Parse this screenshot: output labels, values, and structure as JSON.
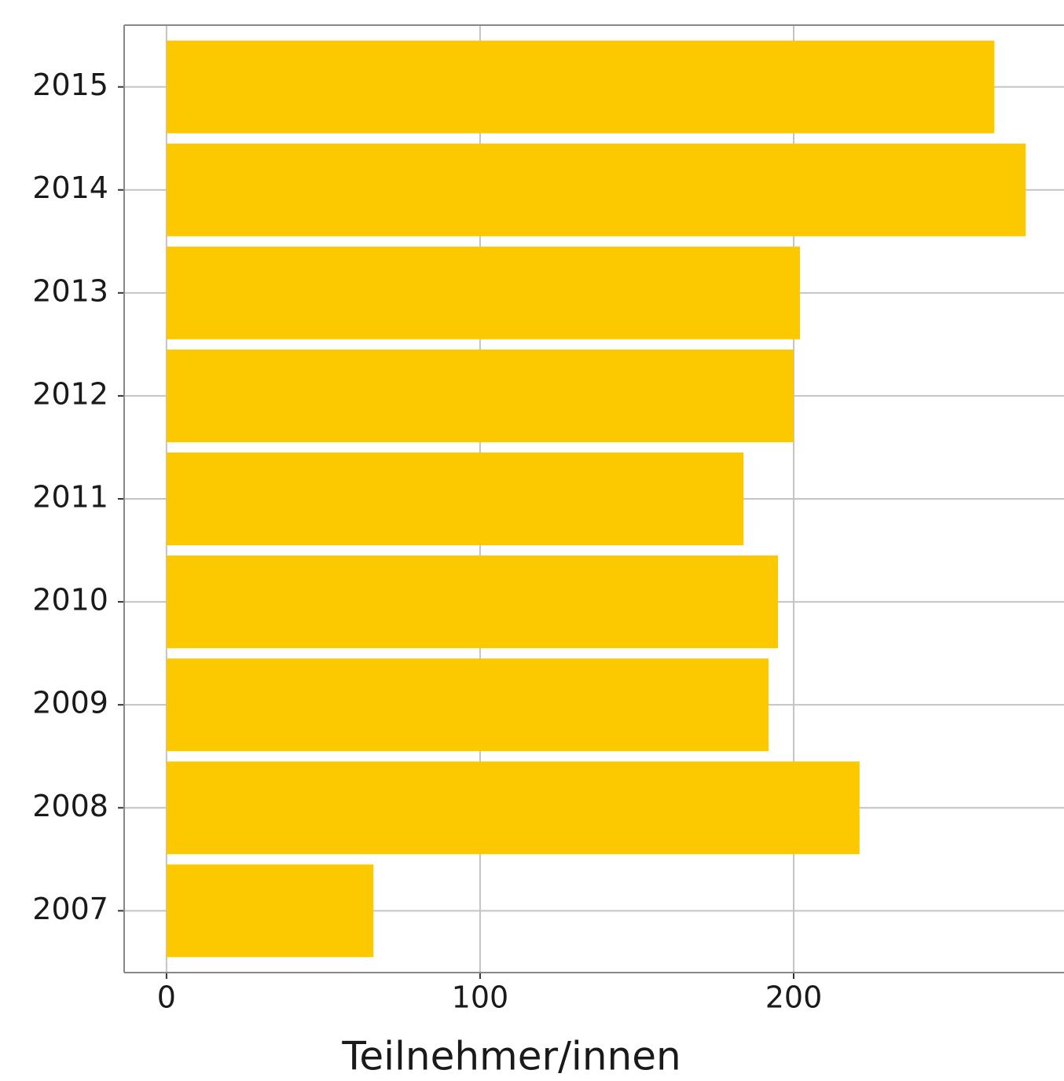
{
  "chart_data": {
    "type": "barh",
    "xlabel": "Teilnehmer/innen",
    "categories": [
      "2007",
      "2008",
      "2009",
      "2010",
      "2011",
      "2012",
      "2013",
      "2014",
      "2015"
    ],
    "values": [
      66,
      221,
      192,
      195,
      184,
      200,
      202,
      274,
      264
    ],
    "color": "#fcc800",
    "xlim": [
      -13.5,
      286.2
    ],
    "xticks": [
      0,
      100,
      200
    ],
    "grid": true
  }
}
